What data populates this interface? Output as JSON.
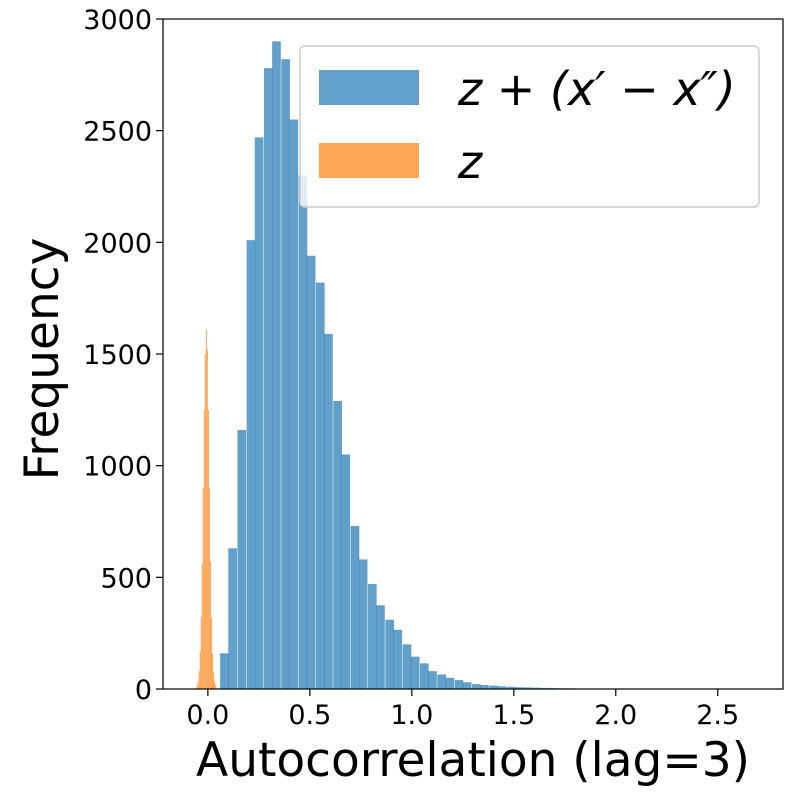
{
  "chart_data": {
    "type": "bar",
    "xlabel": "Autocorrelation (lag=3)",
    "ylabel": "Frequency",
    "xlim": [
      -0.22,
      2.82
    ],
    "ylim": [
      0,
      3000
    ],
    "xticks": [
      0.0,
      0.5,
      1.0,
      1.5,
      2.0,
      2.5
    ],
    "xtick_labels": [
      "0.0",
      "0.5",
      "1.0",
      "1.5",
      "2.0",
      "2.5"
    ],
    "yticks": [
      0,
      500,
      1000,
      1500,
      2000,
      2500,
      3000
    ],
    "ytick_labels": [
      "0",
      "500",
      "1000",
      "1500",
      "2000",
      "2500",
      "3000"
    ],
    "legend_position": "upper-right",
    "series": [
      {
        "name": "z + (x′ − x″)",
        "color": "#1f77b4",
        "opacity": 0.7,
        "bin_width": 0.0425,
        "bin_starts": [
          0.06,
          0.1,
          0.145,
          0.19,
          0.23,
          0.275,
          0.315,
          0.36,
          0.4,
          0.445,
          0.485,
          0.53,
          0.57,
          0.615,
          0.655,
          0.7,
          0.74,
          0.785,
          0.825,
          0.87,
          0.91,
          0.955,
          0.995,
          1.04,
          1.08,
          1.125,
          1.165,
          1.21,
          1.25,
          1.295,
          1.335,
          1.38,
          1.42,
          1.465,
          1.505,
          1.55,
          1.59,
          1.635,
          1.675,
          1.72,
          1.76,
          1.805,
          1.845,
          1.89,
          1.93,
          1.975,
          2.015,
          2.06,
          2.1,
          2.145,
          2.185,
          2.23,
          2.27,
          2.315,
          2.355,
          2.4,
          2.44,
          2.485,
          2.525,
          2.57,
          2.61,
          2.655,
          2.695
        ],
        "counts": [
          160,
          630,
          1160,
          2010,
          2470,
          2780,
          2900,
          2820,
          2550,
          2300,
          1940,
          1820,
          1590,
          1290,
          1050,
          730,
          580,
          470,
          375,
          310,
          265,
          200,
          145,
          115,
          80,
          65,
          50,
          40,
          30,
          22,
          18,
          15,
          12,
          10,
          8,
          7,
          6,
          5,
          4,
          3,
          3,
          2,
          2,
          2,
          1,
          1,
          1,
          1,
          1,
          1,
          1,
          1,
          1,
          1,
          1,
          1,
          1,
          1,
          1,
          1,
          1,
          1,
          1
        ]
      },
      {
        "name": "z",
        "color": "#ff7f0e",
        "opacity": 0.7,
        "bin_width": 0.005,
        "bin_starts": [
          -0.065,
          -0.06,
          -0.055,
          -0.05,
          -0.045,
          -0.04,
          -0.035,
          -0.03,
          -0.025,
          -0.02,
          -0.015,
          -0.01,
          -0.005,
          0.0,
          0.005,
          0.01,
          0.015,
          0.02,
          0.025,
          0.03,
          0.035,
          0.04,
          0.045,
          0.05
        ],
        "counts": [
          2,
          5,
          15,
          35,
          80,
          170,
          320,
          560,
          900,
          1250,
          1500,
          1610,
          1520,
          1250,
          900,
          570,
          320,
          160,
          75,
          35,
          15,
          8,
          3,
          1
        ]
      }
    ]
  }
}
